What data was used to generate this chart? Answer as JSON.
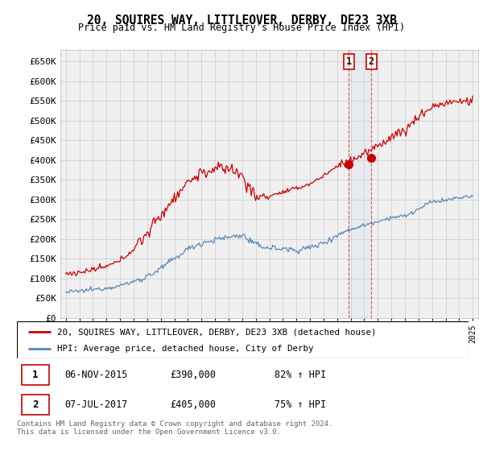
{
  "title": "20, SQUIRES WAY, LITTLEOVER, DERBY, DE23 3XB",
  "subtitle": "Price paid vs. HM Land Registry's House Price Index (HPI)",
  "ylabel_ticks": [
    "£0",
    "£50K",
    "£100K",
    "£150K",
    "£200K",
    "£250K",
    "£300K",
    "£350K",
    "£400K",
    "£450K",
    "£500K",
    "£550K",
    "£600K",
    "£650K"
  ],
  "ylim": [
    0,
    680000
  ],
  "ytick_vals": [
    0,
    50000,
    100000,
    150000,
    200000,
    250000,
    300000,
    350000,
    400000,
    450000,
    500000,
    550000,
    600000,
    650000
  ],
  "legend_line1": "20, SQUIRES WAY, LITTLEOVER, DERBY, DE23 3XB (detached house)",
  "legend_line2": "HPI: Average price, detached house, City of Derby",
  "sale1_date": 2015.85,
  "sale1_price": 390000,
  "sale2_date": 2017.52,
  "sale2_price": 405000,
  "table_row1": [
    "1",
    "06-NOV-2015",
    "£390,000",
    "82% ↑ HPI"
  ],
  "table_row2": [
    "2",
    "07-JUL-2017",
    "£405,000",
    "75% ↑ HPI"
  ],
  "footnote": "Contains HM Land Registry data © Crown copyright and database right 2024.\nThis data is licensed under the Open Government Licence v3.0.",
  "red_color": "#cc0000",
  "blue_color": "#5588bb",
  "bg_color": "#f0f0f0",
  "grid_color": "#cccccc",
  "hpi_base_years": [
    1995,
    1996,
    1997,
    1998,
    1999,
    2000,
    2001,
    2002,
    2003,
    2004,
    2005,
    2006,
    2007,
    2008,
    2009,
    2010,
    2011,
    2012,
    2013,
    2014,
    2015,
    2016,
    2017,
    2018,
    2019,
    2020,
    2021,
    2022,
    2023,
    2024,
    2025
  ],
  "hpi_base_vals": [
    65000,
    68000,
    72000,
    76000,
    82000,
    92000,
    105000,
    125000,
    150000,
    175000,
    190000,
    198000,
    205000,
    210000,
    185000,
    178000,
    175000,
    172000,
    178000,
    190000,
    210000,
    225000,
    235000,
    245000,
    255000,
    258000,
    275000,
    295000,
    298000,
    305000,
    308000
  ],
  "red_base_years": [
    1995,
    1996,
    1997,
    1998,
    1999,
    2000,
    2001,
    2002,
    2003,
    2004,
    2005,
    2006,
    2007,
    2008,
    2009,
    2010,
    2011,
    2012,
    2013,
    2014,
    2015,
    2016,
    2017,
    2018,
    2019,
    2020,
    2021,
    2022,
    2023,
    2024,
    2025
  ],
  "red_base_vals": [
    112000,
    115000,
    122000,
    130000,
    145000,
    175000,
    215000,
    260000,
    305000,
    345000,
    368000,
    375000,
    382000,
    360000,
    305000,
    310000,
    318000,
    328000,
    340000,
    360000,
    385000,
    400000,
    415000,
    435000,
    460000,
    475000,
    510000,
    535000,
    545000,
    548000,
    550000
  ]
}
